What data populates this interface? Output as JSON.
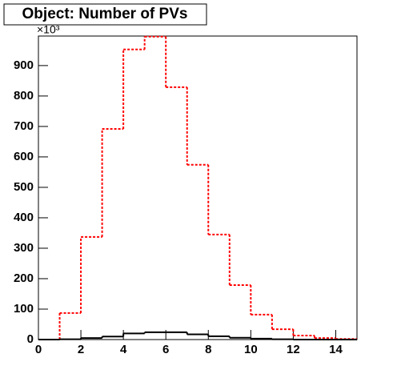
{
  "chart_data": {
    "type": "histogram",
    "title": "Object: Number of PVs",
    "y_multiplier": "×10³",
    "bins": [
      0,
      1,
      2,
      3,
      4,
      5,
      6,
      7,
      8,
      9,
      10,
      11,
      12,
      13,
      14,
      15
    ],
    "series": [
      {
        "color": "#ff0000",
        "dashed": true,
        "values": [
          0,
          87,
          337,
          692,
          953,
          995,
          829,
          574,
          345,
          179,
          82,
          34,
          13,
          5,
          2
        ]
      },
      {
        "color": "#000000",
        "dashed": false,
        "values": [
          0,
          1,
          5,
          10,
          20,
          24,
          24,
          17,
          11,
          6,
          3,
          1,
          0,
          0,
          0
        ]
      }
    ],
    "xlim": [
      0,
      15
    ],
    "xticks": [
      0,
      2,
      4,
      6,
      8,
      10,
      12,
      14
    ],
    "ylim": [
      0,
      997
    ],
    "yticks": [
      0,
      100,
      200,
      300,
      400,
      500,
      600,
      700,
      800,
      900
    ]
  }
}
